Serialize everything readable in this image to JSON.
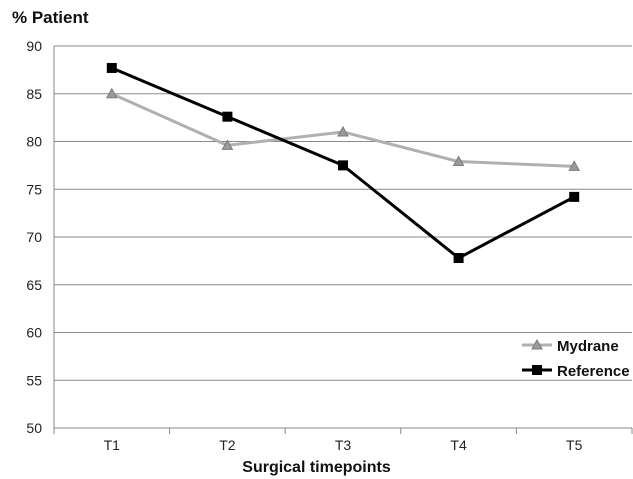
{
  "chart_data": {
    "type": "line",
    "ylabel": "% Patient",
    "xlabel": "Surgical timepoints",
    "categories": [
      "T1",
      "T2",
      "T3",
      "T4",
      "T5"
    ],
    "ylim": [
      50,
      90
    ],
    "yticks": [
      "50",
      "55",
      "60",
      "65",
      "70",
      "75",
      "80",
      "85",
      "90"
    ],
    "grid": "horizontal",
    "legend_position": "bottom-right",
    "series": [
      {
        "name": "Mydrane",
        "values": [
          85.0,
          79.6,
          81.0,
          77.9,
          77.4
        ],
        "color": "#b0b0b0",
        "marker": "triangle"
      },
      {
        "name": "Reference",
        "values": [
          87.7,
          82.6,
          77.5,
          67.8,
          74.2
        ],
        "color": "#000000",
        "marker": "square"
      }
    ]
  }
}
